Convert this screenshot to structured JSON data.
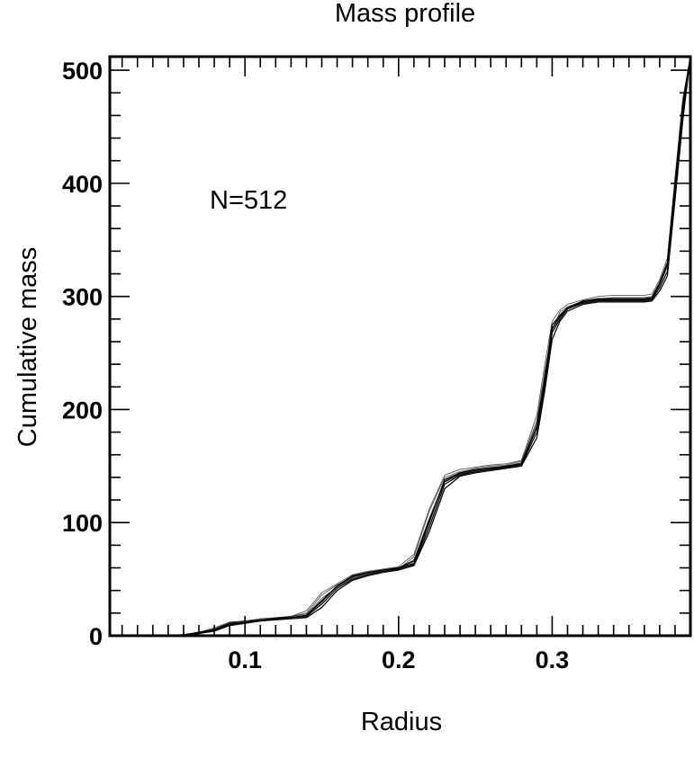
{
  "chart_data": {
    "type": "line",
    "title": "Mass profile",
    "xlabel": "Radius",
    "ylabel": "Cumulative mass",
    "annotation": "N=512",
    "xlim": [
      0.012,
      0.39
    ],
    "ylim": [
      0,
      512
    ],
    "x_ticks": [
      {
        "value": 0.1,
        "label": "0.1"
      },
      {
        "value": 0.2,
        "label": "0.2"
      },
      {
        "value": 0.3,
        "label": "0.3"
      }
    ],
    "y_ticks": [
      {
        "value": 0,
        "label": "0"
      },
      {
        "value": 100,
        "label": "100"
      },
      {
        "value": 200,
        "label": "200"
      },
      {
        "value": 300,
        "label": "300"
      },
      {
        "value": 400,
        "label": "400"
      },
      {
        "value": 500,
        "label": "500"
      }
    ],
    "x_minor_step": 0.01,
    "y_minor_step": 20,
    "grid": false,
    "line_color": "#000000",
    "series": [
      {
        "x": [
          0.012,
          0.04,
          0.06,
          0.07,
          0.08,
          0.09,
          0.1,
          0.11,
          0.12,
          0.13,
          0.14,
          0.15,
          0.16,
          0.17,
          0.18,
          0.19,
          0.2,
          0.21,
          0.22,
          0.23,
          0.24,
          0.25,
          0.26,
          0.27,
          0.28,
          0.29,
          0.295,
          0.3,
          0.305,
          0.31,
          0.32,
          0.33,
          0.34,
          0.35,
          0.36,
          0.365,
          0.37,
          0.375,
          0.38,
          0.385,
          0.39
        ],
        "y": [
          0,
          0,
          0.5,
          2,
          5,
          11,
          12,
          14,
          15,
          16,
          18,
          30,
          44,
          52,
          56,
          58,
          60,
          64,
          100,
          138,
          144,
          147,
          148,
          150,
          152,
          185,
          225,
          275,
          283,
          290,
          296,
          298,
          298,
          298,
          298,
          299,
          312,
          330,
          400,
          470,
          512
        ]
      },
      {
        "x": [
          0.012,
          0.04,
          0.06,
          0.07,
          0.08,
          0.09,
          0.1,
          0.11,
          0.12,
          0.13,
          0.14,
          0.15,
          0.16,
          0.17,
          0.18,
          0.19,
          0.2,
          0.21,
          0.22,
          0.23,
          0.24,
          0.25,
          0.26,
          0.27,
          0.28,
          0.29,
          0.295,
          0.3,
          0.305,
          0.31,
          0.32,
          0.33,
          0.34,
          0.35,
          0.36,
          0.365,
          0.37,
          0.375,
          0.38,
          0.385,
          0.39
        ],
        "y": [
          0,
          0,
          1,
          3,
          6,
          12,
          13,
          14,
          16,
          17,
          20,
          36,
          45,
          52,
          55,
          57,
          59,
          70,
          110,
          140,
          145,
          148,
          150,
          151,
          154,
          190,
          232,
          270,
          286,
          291,
          295,
          297,
          297,
          297,
          297,
          298,
          310,
          326,
          395,
          465,
          512
        ]
      },
      {
        "x": [
          0.012,
          0.04,
          0.06,
          0.07,
          0.08,
          0.09,
          0.1,
          0.11,
          0.12,
          0.13,
          0.14,
          0.15,
          0.16,
          0.17,
          0.18,
          0.19,
          0.2,
          0.21,
          0.22,
          0.23,
          0.24,
          0.25,
          0.26,
          0.27,
          0.28,
          0.29,
          0.295,
          0.3,
          0.305,
          0.31,
          0.32,
          0.33,
          0.34,
          0.35,
          0.36,
          0.365,
          0.37,
          0.375,
          0.38,
          0.385,
          0.39
        ],
        "y": [
          0,
          0,
          0.5,
          2,
          5,
          10,
          12,
          13,
          15,
          16,
          17,
          28,
          42,
          50,
          54,
          57,
          59,
          63,
          96,
          134,
          142,
          145,
          147,
          149,
          151,
          180,
          220,
          268,
          280,
          289,
          294,
          296,
          296,
          296,
          296,
          297,
          308,
          322,
          390,
          460,
          512
        ]
      },
      {
        "x": [
          0.012,
          0.04,
          0.06,
          0.07,
          0.08,
          0.09,
          0.1,
          0.11,
          0.12,
          0.13,
          0.14,
          0.15,
          0.16,
          0.17,
          0.18,
          0.19,
          0.2,
          0.21,
          0.22,
          0.23,
          0.24,
          0.25,
          0.26,
          0.27,
          0.28,
          0.29,
          0.295,
          0.3,
          0.305,
          0.31,
          0.32,
          0.33,
          0.34,
          0.35,
          0.36,
          0.365,
          0.37,
          0.375,
          0.38,
          0.385,
          0.39
        ],
        "y": [
          0,
          0,
          1,
          3,
          7,
          12,
          13,
          15,
          16,
          17,
          22,
          38,
          46,
          54,
          57,
          59,
          61,
          72,
          112,
          142,
          147,
          149,
          151,
          152,
          155,
          195,
          238,
          278,
          288,
          293,
          297,
          300,
          301,
          301,
          301,
          302,
          315,
          334,
          405,
          475,
          512
        ]
      },
      {
        "x": [
          0.012,
          0.04,
          0.06,
          0.07,
          0.08,
          0.09,
          0.1,
          0.11,
          0.12,
          0.13,
          0.14,
          0.15,
          0.16,
          0.17,
          0.18,
          0.19,
          0.2,
          0.21,
          0.22,
          0.23,
          0.24,
          0.25,
          0.26,
          0.27,
          0.28,
          0.29,
          0.295,
          0.3,
          0.305,
          0.31,
          0.32,
          0.33,
          0.34,
          0.35,
          0.36,
          0.365,
          0.37,
          0.375,
          0.38,
          0.385,
          0.39
        ],
        "y": [
          0,
          0,
          0.5,
          2,
          4,
          9,
          11,
          13,
          14,
          15,
          16,
          25,
          40,
          49,
          53,
          56,
          58,
          62,
          92,
          130,
          141,
          144,
          146,
          148,
          150,
          175,
          215,
          262,
          278,
          287,
          293,
          295,
          295,
          295,
          295,
          296,
          305,
          318,
          385,
          455,
          512
        ]
      },
      {
        "x": [
          0.012,
          0.04,
          0.06,
          0.07,
          0.08,
          0.09,
          0.1,
          0.11,
          0.12,
          0.13,
          0.14,
          0.15,
          0.16,
          0.17,
          0.18,
          0.19,
          0.2,
          0.21,
          0.22,
          0.23,
          0.24,
          0.25,
          0.26,
          0.27,
          0.28,
          0.29,
          0.295,
          0.3,
          0.305,
          0.31,
          0.32,
          0.33,
          0.34,
          0.35,
          0.36,
          0.365,
          0.37,
          0.375,
          0.38,
          0.385,
          0.39
        ],
        "y": [
          0,
          0,
          1,
          2,
          6,
          11,
          12,
          14,
          15,
          17,
          19,
          33,
          43,
          51,
          55,
          58,
          60,
          67,
          104,
          137,
          144,
          147,
          149,
          150,
          153,
          188,
          228,
          272,
          284,
          290,
          296,
          298,
          299,
          299,
          299,
          300,
          313,
          330,
          398,
          468,
          512
        ]
      },
      {
        "x": [
          0.012,
          0.04,
          0.06,
          0.07,
          0.08,
          0.09,
          0.1,
          0.11,
          0.12,
          0.13,
          0.14,
          0.15,
          0.16,
          0.17,
          0.18,
          0.19,
          0.2,
          0.21,
          0.22,
          0.23,
          0.24,
          0.25,
          0.26,
          0.27,
          0.28,
          0.29,
          0.295,
          0.3,
          0.305,
          0.31,
          0.32,
          0.33,
          0.34,
          0.35,
          0.36,
          0.365,
          0.37,
          0.375,
          0.38,
          0.385,
          0.39
        ],
        "y": [
          0,
          0,
          0.5,
          3,
          5,
          10,
          12,
          14,
          15,
          16,
          18,
          31,
          44,
          53,
          56,
          58,
          60,
          66,
          102,
          136,
          143,
          146,
          148,
          149,
          152,
          184,
          224,
          271,
          282,
          289,
          295,
          297,
          297,
          297,
          297,
          298,
          311,
          328,
          396,
          466,
          512
        ]
      }
    ]
  }
}
